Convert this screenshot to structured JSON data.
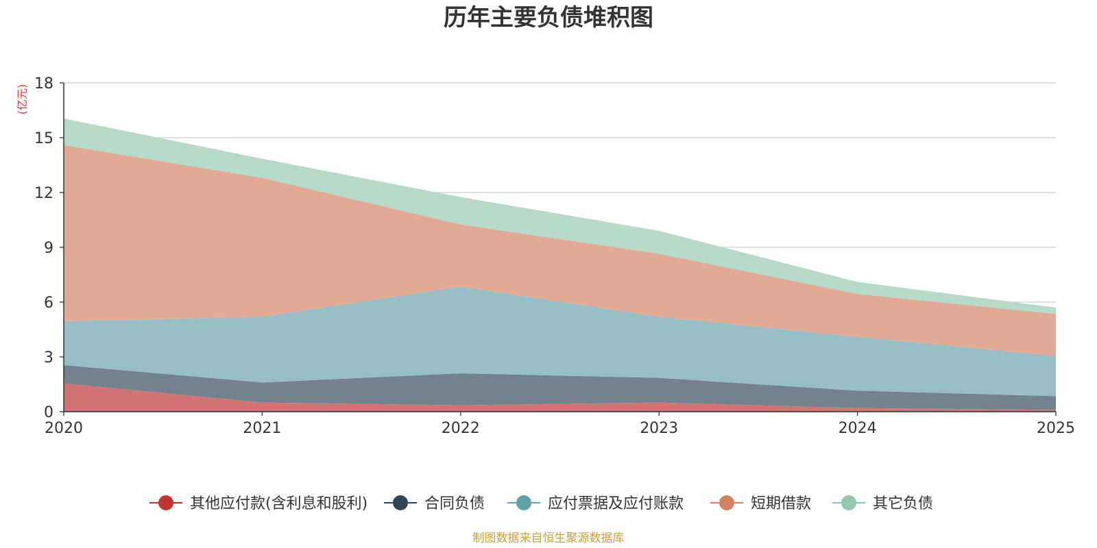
{
  "chart_data": {
    "type": "area",
    "stacked": true,
    "title": "历年主要负债堆积图",
    "unit_label": "(亿元)",
    "x": [
      "2020",
      "2021",
      "2022",
      "2023",
      "2024",
      "2025"
    ],
    "ylim": [
      0,
      18
    ],
    "yticks": [
      "0",
      "3",
      "6",
      "9",
      "12",
      "15",
      "18"
    ],
    "grid": true,
    "legend_position": "bottom",
    "series": [
      {
        "name": "其他应付款(含利息和股利)",
        "color": "#c23531",
        "fill": "#d06a6a",
        "values": [
          1.55,
          0.5,
          0.35,
          0.5,
          0.2,
          0.1
        ]
      },
      {
        "name": "合同负债",
        "color": "#2f4554",
        "fill": "#6d7b87",
        "values": [
          1.0,
          1.1,
          1.75,
          1.35,
          0.95,
          0.75
        ]
      },
      {
        "name": "应付票据及应付账款",
        "color": "#61a0a8",
        "fill": "#90bac1",
        "values": [
          2.4,
          3.6,
          4.75,
          3.35,
          2.95,
          2.2
        ]
      },
      {
        "name": "短期借款",
        "color": "#d48265",
        "fill": "#dfa690",
        "values": [
          9.65,
          7.6,
          3.4,
          3.45,
          2.35,
          2.3
        ]
      },
      {
        "name": "其它负债",
        "color": "#91c7ae",
        "fill": "#b2d7c5",
        "values": [
          1.45,
          1.05,
          1.5,
          1.25,
          0.65,
          0.35
        ]
      }
    ],
    "source": "制图数据来自恒生聚源数据库"
  },
  "colors": {
    "title": "#333333",
    "unit": "#e8382f",
    "source": "#c8a13b",
    "grid": "#cccccc",
    "axis": "#333333"
  }
}
